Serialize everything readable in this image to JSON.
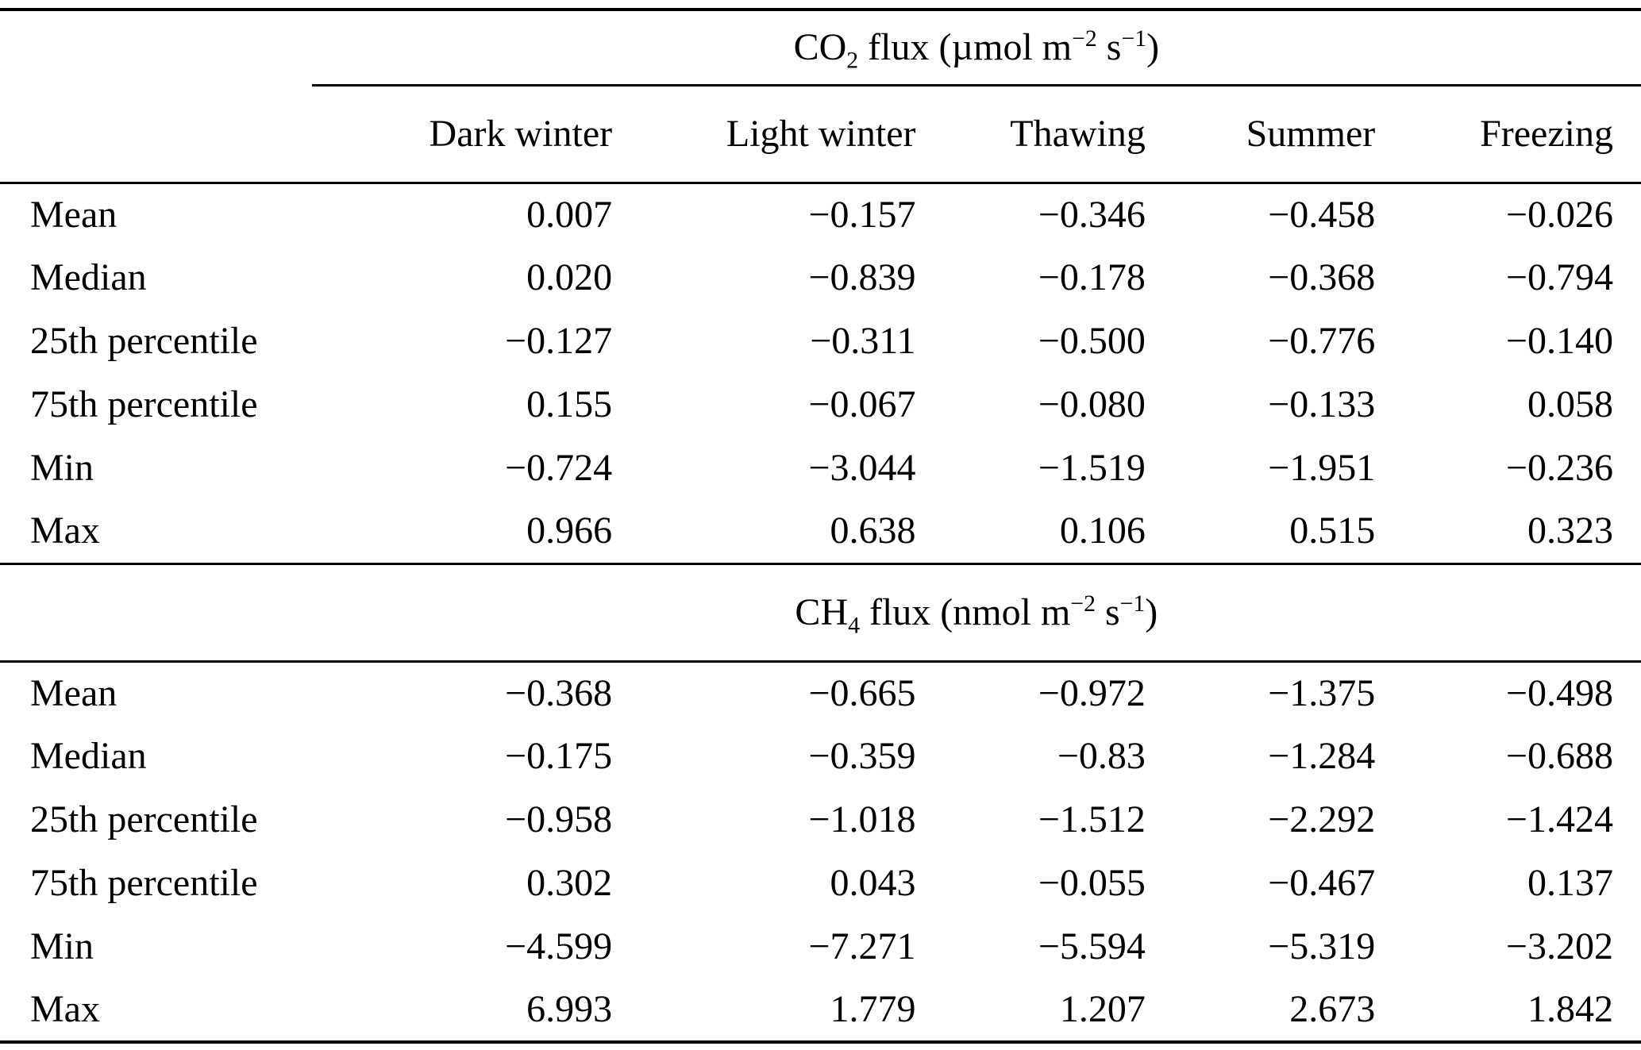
{
  "table": {
    "columns": [
      "Dark winter",
      "Light winter",
      "Thawing",
      "Summer",
      "Freezing"
    ],
    "sections": [
      {
        "title": {
          "base": "CO",
          "subscript": "2",
          "mid": " flux (µmol m",
          "sup1": "−2",
          "mid2": " s",
          "sup2": "−1",
          "end": ")"
        },
        "rows": [
          {
            "label": "Mean",
            "values": [
              "0.007",
              "−0.157",
              "−0.346",
              "−0.458",
              "−0.026"
            ]
          },
          {
            "label": "Median",
            "values": [
              "0.020",
              "−0.839",
              "−0.178",
              "−0.368",
              "−0.794"
            ]
          },
          {
            "label": "25th percentile",
            "values": [
              "−0.127",
              "−0.311",
              "−0.500",
              "−0.776",
              "−0.140"
            ]
          },
          {
            "label": "75th percentile",
            "values": [
              "0.155",
              "−0.067",
              "−0.080",
              "−0.133",
              "0.058"
            ]
          },
          {
            "label": "Min",
            "values": [
              "−0.724",
              "−3.044",
              "−1.519",
              "−1.951",
              "−0.236"
            ]
          },
          {
            "label": "Max",
            "values": [
              "0.966",
              "0.638",
              "0.106",
              "0.515",
              "0.323"
            ]
          }
        ]
      },
      {
        "title": {
          "base": "CH",
          "subscript": "4",
          "mid": " flux (nmol m",
          "sup1": "−2",
          "mid2": " s",
          "sup2": "−1",
          "end": ")"
        },
        "rows": [
          {
            "label": "Mean",
            "values": [
              "−0.368",
              "−0.665",
              "−0.972",
              "−1.375",
              "−0.498"
            ]
          },
          {
            "label": "Median",
            "values": [
              "−0.175",
              "−0.359",
              "−0.83",
              "−1.284",
              "−0.688"
            ]
          },
          {
            "label": "25th percentile",
            "values": [
              "−0.958",
              "−1.018",
              "−1.512",
              "−2.292",
              "−1.424"
            ]
          },
          {
            "label": "75th percentile",
            "values": [
              "0.302",
              "0.043",
              "−0.055",
              "−0.467",
              "0.137"
            ]
          },
          {
            "label": "Min",
            "values": [
              "−4.599",
              "−7.271",
              "−5.594",
              "−5.319",
              "−3.202"
            ]
          },
          {
            "label": "Max",
            "values": [
              "6.993",
              "1.779",
              "1.207",
              "2.673",
              "1.842"
            ]
          }
        ]
      }
    ]
  },
  "chart_data": [
    {
      "type": "table",
      "title": "CO2 flux (µmol m−2 s−1)",
      "columns": [
        "",
        "Dark winter",
        "Light winter",
        "Thawing",
        "Summer",
        "Freezing"
      ],
      "rows": [
        [
          "Mean",
          0.007,
          -0.157,
          -0.346,
          -0.458,
          -0.026
        ],
        [
          "Median",
          0.02,
          -0.839,
          -0.178,
          -0.368,
          -0.794
        ],
        [
          "25th percentile",
          -0.127,
          -0.311,
          -0.5,
          -0.776,
          -0.14
        ],
        [
          "75th percentile",
          0.155,
          -0.067,
          -0.08,
          -0.133,
          0.058
        ],
        [
          "Min",
          -0.724,
          -3.044,
          -1.519,
          -1.951,
          -0.236
        ],
        [
          "Max",
          0.966,
          0.638,
          0.106,
          0.515,
          0.323
        ]
      ]
    },
    {
      "type": "table",
      "title": "CH4 flux (nmol m−2 s−1)",
      "columns": [
        "",
        "Dark winter",
        "Light winter",
        "Thawing",
        "Summer",
        "Freezing"
      ],
      "rows": [
        [
          "Mean",
          -0.368,
          -0.665,
          -0.972,
          -1.375,
          -0.498
        ],
        [
          "Median",
          -0.175,
          -0.359,
          -0.83,
          -1.284,
          -0.688
        ],
        [
          "25th percentile",
          -0.958,
          -1.018,
          -1.512,
          -2.292,
          -1.424
        ],
        [
          "75th percentile",
          0.302,
          0.043,
          -0.055,
          -0.467,
          0.137
        ],
        [
          "Min",
          -4.599,
          -7.271,
          -5.594,
          -5.319,
          -3.202
        ],
        [
          "Max",
          6.993,
          1.779,
          1.207,
          2.673,
          1.842
        ]
      ]
    }
  ]
}
